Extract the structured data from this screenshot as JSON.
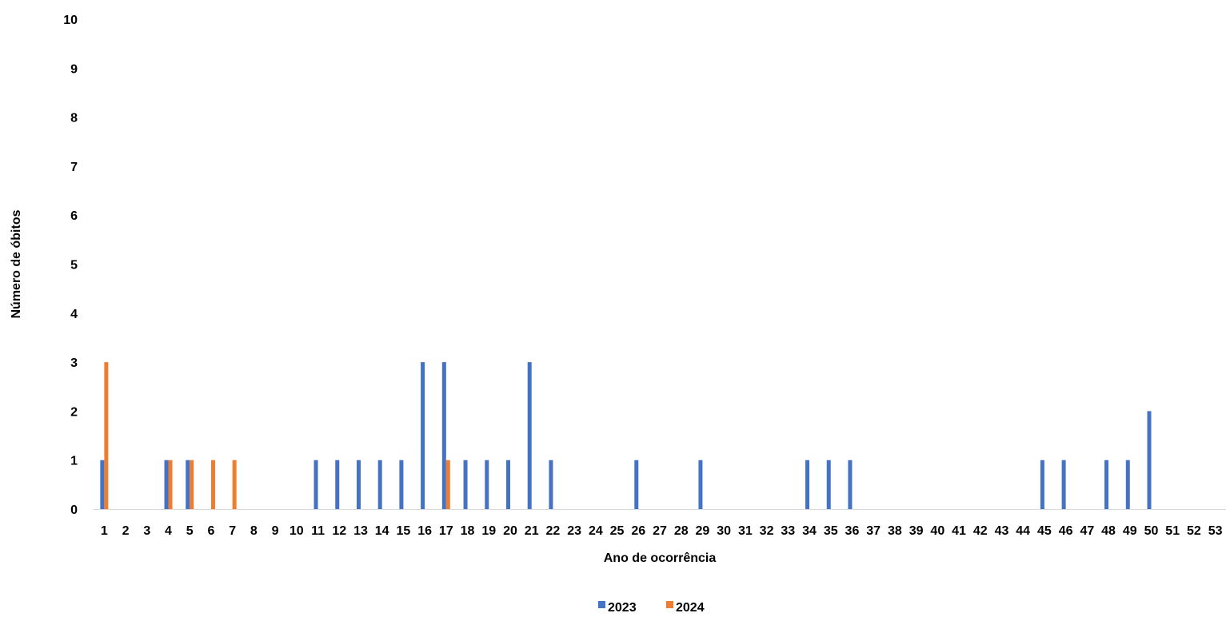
{
  "chart_data": {
    "type": "bar",
    "title": "",
    "xlabel": "Ano de ocorrência",
    "ylabel": "Número de óbitos",
    "ylim": [
      0,
      10
    ],
    "yticks": [
      "0",
      "1",
      "2",
      "3",
      "4",
      "5",
      "6",
      "7",
      "8",
      "9",
      "10"
    ],
    "grid": false,
    "legend_position": "bottom",
    "categories": [
      "1",
      "2",
      "3",
      "4",
      "5",
      "6",
      "7",
      "8",
      "9",
      "10",
      "11",
      "12",
      "13",
      "14",
      "15",
      "16",
      "17",
      "18",
      "19",
      "20",
      "21",
      "22",
      "23",
      "24",
      "25",
      "26",
      "27",
      "28",
      "29",
      "30",
      "31",
      "32",
      "33",
      "34",
      "35",
      "36",
      "37",
      "38",
      "39",
      "40",
      "41",
      "42",
      "43",
      "44",
      "45",
      "46",
      "47",
      "48",
      "49",
      "50",
      "51",
      "52",
      "53"
    ],
    "series": [
      {
        "name": "2023",
        "color": "#4472C4",
        "values": [
          1,
          0,
          0,
          1,
          1,
          0,
          0,
          0,
          0,
          0,
          1,
          1,
          1,
          1,
          1,
          3,
          3,
          1,
          1,
          1,
          3,
          1,
          0,
          0,
          0,
          1,
          0,
          0,
          1,
          0,
          0,
          0,
          0,
          1,
          1,
          1,
          0,
          0,
          0,
          0,
          0,
          0,
          0,
          0,
          1,
          1,
          0,
          1,
          1,
          2,
          0,
          0,
          0
        ]
      },
      {
        "name": "2024",
        "color": "#ED7D31",
        "values": [
          3,
          0,
          0,
          1,
          1,
          1,
          1,
          0,
          0,
          0,
          0,
          0,
          0,
          0,
          0,
          0,
          1,
          0,
          0,
          0,
          0,
          0,
          0,
          0,
          0,
          0,
          0,
          0,
          0,
          0,
          0,
          0,
          0,
          0,
          0,
          0,
          0,
          0,
          0,
          0,
          0,
          0,
          0,
          0,
          0,
          0,
          0,
          0,
          0,
          0,
          0,
          0,
          0
        ]
      }
    ]
  }
}
